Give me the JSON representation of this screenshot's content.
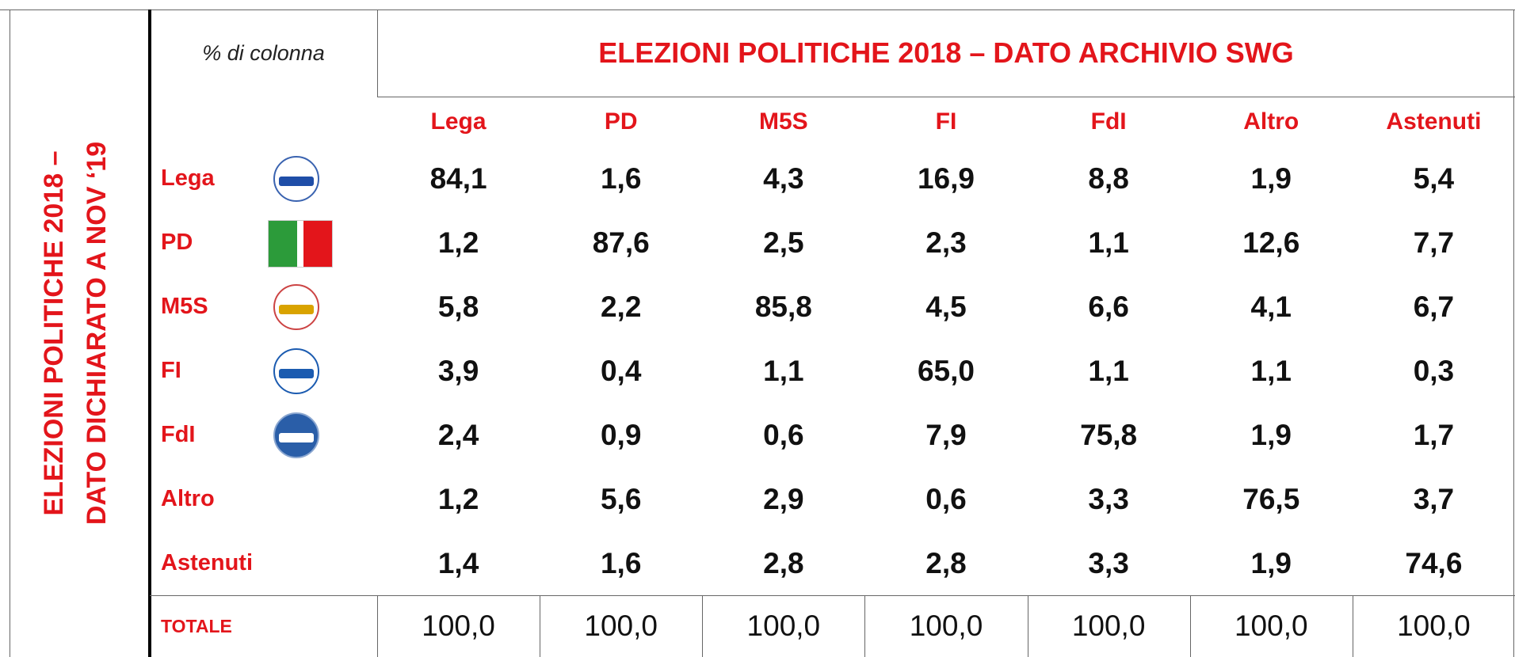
{
  "side_title": [
    "ELEZIONI POLITICHE 2018 –",
    "DATO DICHIARATO A NOV ‘19"
  ],
  "header": {
    "note": "% di colonna",
    "title": "ELEZIONI POLITICHE 2018 – DATO ARCHIVIO SWG"
  },
  "table": {
    "columns": [
      "Lega",
      "PD",
      "M5S",
      "FI",
      "FdI",
      "Altro",
      "Astenuti"
    ],
    "rows": [
      {
        "label": "Lega",
        "values": [
          "84,1",
          "1,6",
          "4,3",
          "16,9",
          "8,8",
          "1,9",
          "5,4"
        ]
      },
      {
        "label": "PD",
        "values": [
          "1,2",
          "87,6",
          "2,5",
          "2,3",
          "1,1",
          "12,6",
          "7,7"
        ]
      },
      {
        "label": "M5S",
        "values": [
          "5,8",
          "2,2",
          "85,8",
          "4,5",
          "6,6",
          "4,1",
          "6,7"
        ]
      },
      {
        "label": "FI",
        "values": [
          "3,9",
          "0,4",
          "1,1",
          "65,0",
          "1,1",
          "1,1",
          "0,3"
        ]
      },
      {
        "label": "FdI",
        "values": [
          "2,4",
          "0,9",
          "0,6",
          "7,9",
          "75,8",
          "1,9",
          "1,7"
        ]
      },
      {
        "label": "Altro",
        "values": [
          "1,2",
          "5,6",
          "2,9",
          "0,6",
          "3,3",
          "76,5",
          "3,7"
        ]
      },
      {
        "label": "Astenuti",
        "values": [
          "1,4",
          "1,6",
          "2,8",
          "2,8",
          "3,3",
          "1,9",
          "74,6"
        ]
      }
    ],
    "total": {
      "label": "TOTALE",
      "values": [
        "100,0",
        "100,0",
        "100,0",
        "100,0",
        "100,0",
        "100,0",
        "100,0"
      ]
    }
  }
}
